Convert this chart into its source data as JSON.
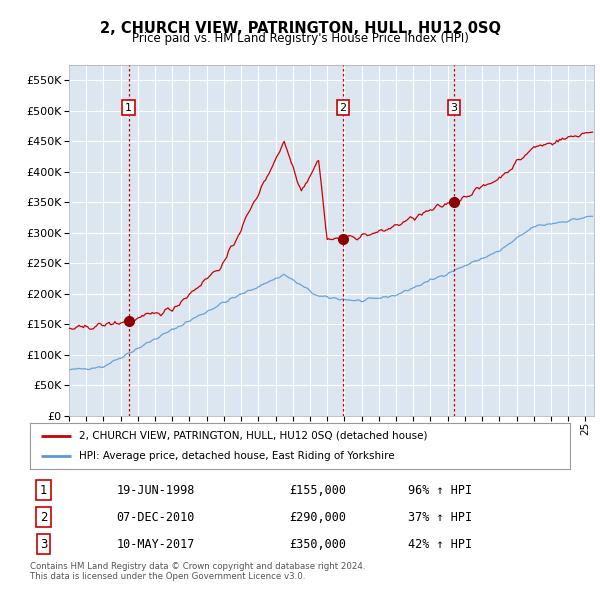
{
  "title": "2, CHURCH VIEW, PATRINGTON, HULL, HU12 0SQ",
  "subtitle": "Price paid vs. HM Land Registry's House Price Index (HPI)",
  "ylim": [
    0,
    575000
  ],
  "yticks": [
    0,
    50000,
    100000,
    150000,
    200000,
    250000,
    300000,
    350000,
    400000,
    450000,
    500000,
    550000
  ],
  "xlim_start": 1995.0,
  "xlim_end": 2025.5,
  "bg_color": "#dce6f1",
  "grid_color": "#ffffff",
  "red_line_color": "#cc0000",
  "blue_line_color": "#5b9bd5",
  "sale_marker_color": "#8b0000",
  "sale_vline_color": "#cc0000",
  "transactions": [
    {
      "num": 1,
      "date_str": "19-JUN-1998",
      "date_x": 1998.46,
      "price": 155000,
      "pct": "96%",
      "dir": "↑"
    },
    {
      "num": 2,
      "date_str": "07-DEC-2010",
      "date_x": 2010.92,
      "price": 290000,
      "pct": "37%",
      "dir": "↑"
    },
    {
      "num": 3,
      "date_str": "10-MAY-2017",
      "date_x": 2017.36,
      "price": 350000,
      "pct": "42%",
      "dir": "↑"
    }
  ],
  "legend_line1": "2, CHURCH VIEW, PATRINGTON, HULL, HU12 0SQ (detached house)",
  "legend_line2": "HPI: Average price, detached house, East Riding of Yorkshire",
  "footer1": "Contains HM Land Registry data © Crown copyright and database right 2024.",
  "footer2": "This data is licensed under the Open Government Licence v3.0."
}
